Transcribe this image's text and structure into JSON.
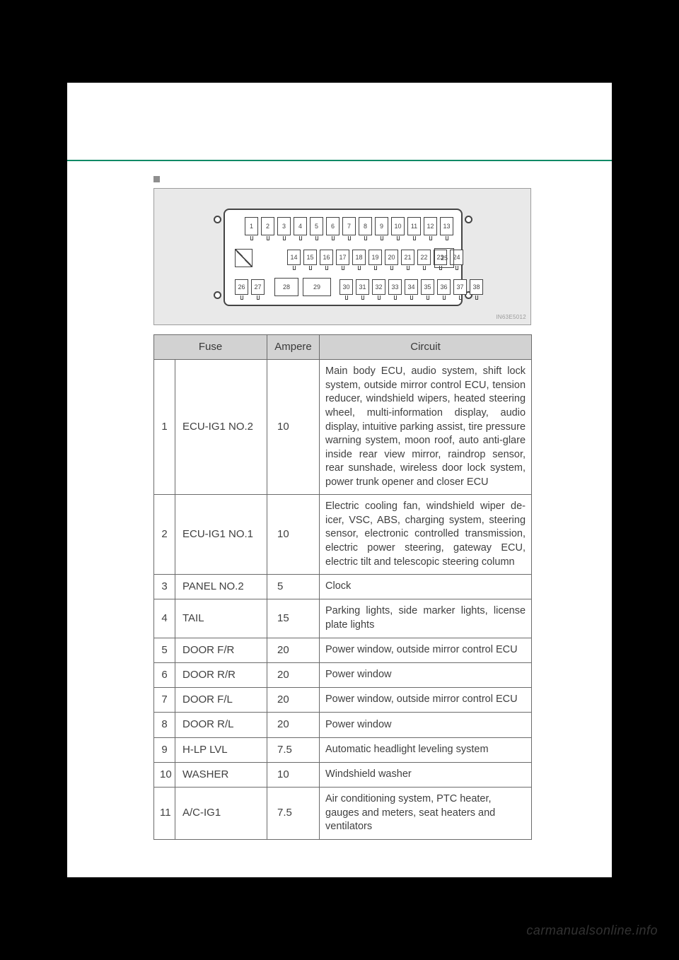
{
  "diagram": {
    "id_label": "IN63E5012",
    "row1": [
      "1",
      "2",
      "3",
      "4",
      "5",
      "6",
      "7",
      "8",
      "9",
      "10",
      "11",
      "12",
      "13"
    ],
    "row2": [
      "14",
      "15",
      "16",
      "17",
      "18",
      "19",
      "20",
      "21",
      "22",
      "23",
      "24"
    ],
    "slot25": "25",
    "row3_left": [
      "26",
      "27"
    ],
    "row3_mid": [
      "28",
      "29"
    ],
    "row3_right": [
      "30",
      "31",
      "32",
      "33",
      "34",
      "35",
      "36",
      "37",
      "38"
    ],
    "colors": {
      "panel_bg": "#e9e9e9",
      "panel_border": "#9d9d9d",
      "box_border": "#444444"
    }
  },
  "table": {
    "headers": {
      "fuse": "Fuse",
      "ampere": "Ampere",
      "circuit": "Circuit"
    },
    "header_bg": "#d2d2d2",
    "border_color": "#6b6b6b",
    "rows": [
      {
        "n": "1",
        "fuse": "ECU-IG1 NO.2",
        "amp": "10",
        "circuit": "Main body ECU, audio system, shift lock system, outside mirror control ECU, tension reducer, windshield wipers, heated steering wheel, multi-information display, audio display, intuitive parking assist, tire pressure warning system, moon roof, auto anti-glare inside rear view mirror, raindrop sensor, rear sunshade, wireless door lock system, power trunk opener and closer ECU",
        "short": false
      },
      {
        "n": "2",
        "fuse": "ECU-IG1 NO.1",
        "amp": "10",
        "circuit": "Electric cooling fan, windshield wiper de-icer, VSC, ABS, charging system, steering sensor, electronic controlled transmission, electric power steering, gateway ECU, electric tilt and telescopic steering column",
        "short": false
      },
      {
        "n": "3",
        "fuse": "PANEL NO.2",
        "amp": "5",
        "circuit": "Clock",
        "short": true
      },
      {
        "n": "4",
        "fuse": "TAIL",
        "amp": "15",
        "circuit": "Parking lights, side marker lights, license plate lights",
        "short": false
      },
      {
        "n": "5",
        "fuse": "DOOR F/R",
        "amp": "20",
        "circuit": "Power window, outside mirror control ECU",
        "short": true
      },
      {
        "n": "6",
        "fuse": "DOOR R/R",
        "amp": "20",
        "circuit": "Power window",
        "short": true
      },
      {
        "n": "7",
        "fuse": "DOOR F/L",
        "amp": "20",
        "circuit": "Power window, outside mirror control ECU",
        "short": true
      },
      {
        "n": "8",
        "fuse": "DOOR R/L",
        "amp": "20",
        "circuit": "Power window",
        "short": true
      },
      {
        "n": "9",
        "fuse": "H-LP LVL",
        "amp": "7.5",
        "circuit": "Automatic headlight leveling system",
        "short": true
      },
      {
        "n": "10",
        "fuse": "WASHER",
        "amp": "10",
        "circuit": "Windshield washer",
        "short": true
      },
      {
        "n": "11",
        "fuse": "A/C-IG1",
        "amp": "7.5",
        "circuit": "Air conditioning system, PTC heater, gauges and meters, seat heaters and ventilators",
        "short": true
      }
    ]
  },
  "watermark": "carmanualsonline.info"
}
